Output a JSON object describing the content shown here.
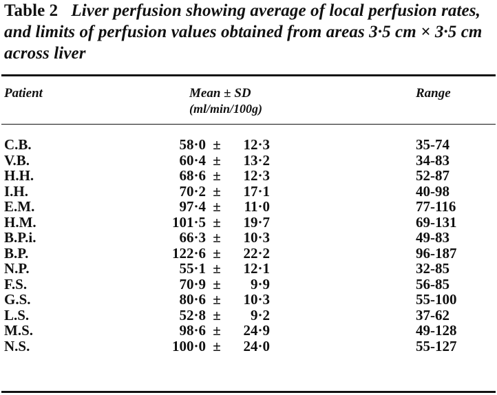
{
  "caption": {
    "label": "Table 2",
    "text": "Liver perfusion showing average of local perfusion rates, and limits of perfusion values obtained from areas 3·5 cm × 3·5 cm across liver"
  },
  "headers": {
    "patient": "Patient",
    "mean": "Mean ± SD",
    "mean_unit": "(ml/min/100g)",
    "range": "Range"
  },
  "pm_symbol": "±",
  "rows": [
    {
      "patient": "C.B.",
      "mean": "58·0",
      "sd": "12·3",
      "range": "35-74"
    },
    {
      "patient": "V.B.",
      "mean": "60·4",
      "sd": "13·2",
      "range": "34-83"
    },
    {
      "patient": "H.H.",
      "mean": "68·6",
      "sd": "12·3",
      "range": "52-87"
    },
    {
      "patient": "I.H.",
      "mean": "70·2",
      "sd": "17·1",
      "range": "40-98"
    },
    {
      "patient": "E.M.",
      "mean": "97·4",
      "sd": "11·0",
      "range": "77-116"
    },
    {
      "patient": "H.M.",
      "mean": "101·5",
      "sd": "19·7",
      "range": "69-131"
    },
    {
      "patient": "B.P.i.",
      "mean": "66·3",
      "sd": "10·3",
      "range": "49-83"
    },
    {
      "patient": "B.P.",
      "mean": "122·6",
      "sd": "22·2",
      "range": "96-187"
    },
    {
      "patient": "N.P.",
      "mean": "55·1",
      "sd": "12·1",
      "range": "32-85"
    },
    {
      "patient": "F.S.",
      "mean": "70·9",
      "sd": "9·9",
      "range": "56-85"
    },
    {
      "patient": "G.S.",
      "mean": "80·6",
      "sd": "10·3",
      "range": "55-100"
    },
    {
      "patient": "L.S.",
      "mean": "52·8",
      "sd": "9·2",
      "range": "37-62"
    },
    {
      "patient": "M.S.",
      "mean": "98·6",
      "sd": "24·9",
      "range": "49-128"
    },
    {
      "patient": "N.S.",
      "mean": "100·0",
      "sd": "24·0",
      "range": "55-127"
    }
  ]
}
